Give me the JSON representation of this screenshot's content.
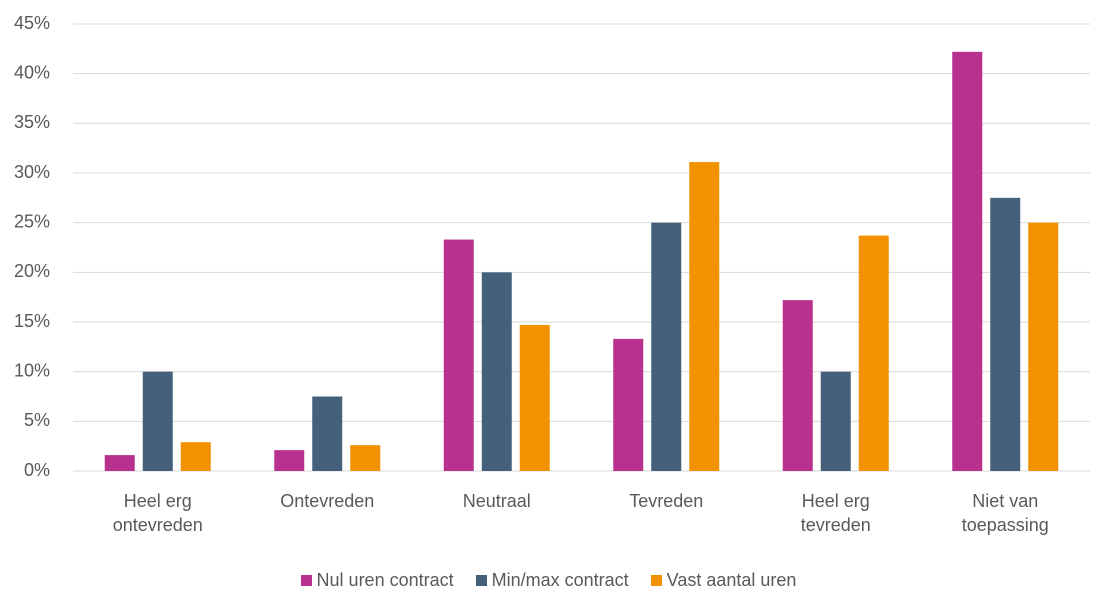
{
  "chart_data": {
    "type": "bar",
    "categories": [
      "Heel erg ontevreden",
      "Ontevreden",
      "Neutraal",
      "Tevreden",
      "Heel erg tevreden",
      "Niet van toepassing"
    ],
    "series": [
      {
        "name": "Nul uren contract",
        "color": "#b8318f",
        "values": [
          1.6,
          2.1,
          23.3,
          13.3,
          17.2,
          42.2
        ]
      },
      {
        "name": "Min/max contract",
        "color": "#44607a",
        "values": [
          10.0,
          7.5,
          20.0,
          25.0,
          10.0,
          27.5
        ]
      },
      {
        "name": "Vast aantal uren",
        "color": "#f39200",
        "values": [
          2.9,
          2.6,
          14.7,
          31.1,
          23.7,
          25.0
        ]
      }
    ],
    "ylim": [
      0,
      45
    ],
    "yticks": [
      {
        "value": 0,
        "label": "0%"
      },
      {
        "value": 5,
        "label": "5%"
      },
      {
        "value": 10,
        "label": "10%"
      },
      {
        "value": 15,
        "label": "15%"
      },
      {
        "value": 20,
        "label": "20%"
      },
      {
        "value": 25,
        "label": "25%"
      },
      {
        "value": 30,
        "label": "30%"
      },
      {
        "value": 35,
        "label": "35%"
      },
      {
        "value": 40,
        "label": "40%"
      },
      {
        "value": 45,
        "label": "45%"
      }
    ],
    "grid": true,
    "legend": "bottom"
  }
}
